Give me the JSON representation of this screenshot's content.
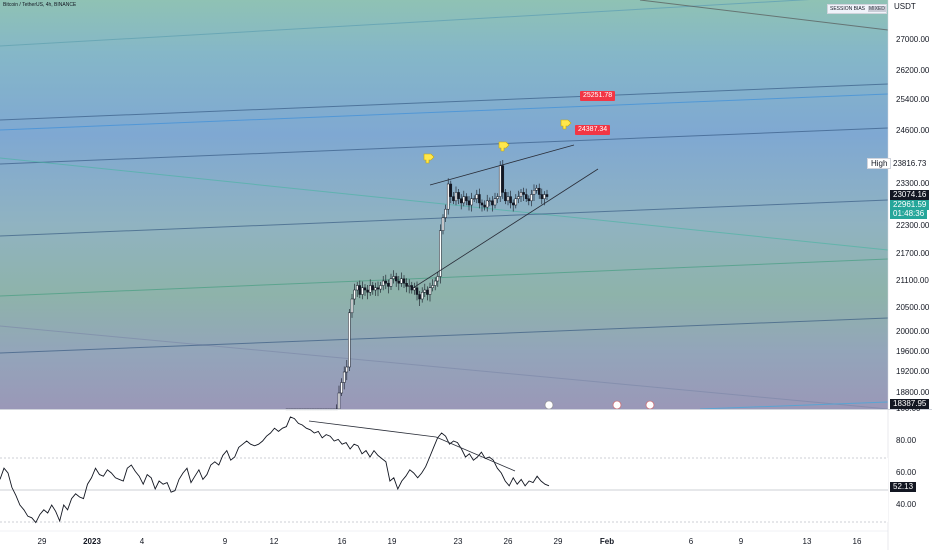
{
  "symbol": "Bitcoin / TetherUS, 4h, BINANCE",
  "indicator": {
    "name": "SESSION BIAS",
    "value": "MIXED"
  },
  "currency": "USDT",
  "colors": {
    "up": "#26a69a",
    "down": "#ef5350",
    "callout": "#f23645",
    "neutral_tag": "#131722"
  },
  "callouts": [
    {
      "text": "25251.78"
    },
    {
      "text": "24387.34"
    }
  ],
  "tags": {
    "high_label": "High",
    "high_value": "23816.73",
    "price": "23074.16",
    "last": "22961.59",
    "timer": "01:48:36",
    "low": "18387.95",
    "rsi": "52.13"
  },
  "chart_data": [
    {
      "type": "candlestick",
      "title": "Bitcoin / TetherUS, 4h, BINANCE",
      "ylabel": "USDT",
      "ylim": [
        18387,
        27800
      ],
      "yticks": [
        "27000.00",
        "26200.00",
        "25400.00",
        "24600.00",
        "23300.00",
        "22300.00",
        "21700.00",
        "21100.00",
        "20500.00",
        "20000.00",
        "19600.00",
        "19200.00",
        "18800.00"
      ],
      "xticks": [
        {
          "label": "29",
          "x": 42
        },
        {
          "label": "2023",
          "x": 92,
          "bold": true
        },
        {
          "label": "4",
          "x": 142
        },
        {
          "label": "9",
          "x": 225
        },
        {
          "label": "12",
          "x": 274
        },
        {
          "label": "16",
          "x": 342
        },
        {
          "label": "19",
          "x": 392
        },
        {
          "label": "23",
          "x": 458
        },
        {
          "label": "26",
          "x": 508
        },
        {
          "label": "29",
          "x": 558
        },
        {
          "label": "Feb",
          "x": 607,
          "bold": true
        },
        {
          "label": "6",
          "x": 691
        },
        {
          "label": "9",
          "x": 741
        },
        {
          "label": "13",
          "x": 807
        },
        {
          "label": "16",
          "x": 857
        }
      ],
      "close": [
        16560,
        16580,
        16620,
        16600,
        16650,
        16700,
        16680,
        16720,
        16780,
        16800,
        16900,
        16950,
        17000,
        17200,
        17400,
        17600,
        17800,
        17900,
        18100,
        18300,
        18800,
        19000,
        19200,
        19300,
        20400,
        20700,
        20900,
        21000,
        20800,
        20950,
        20900,
        20850,
        21000,
        20900,
        20950,
        20920,
        21000,
        21100,
        21050,
        20980,
        21150,
        21200,
        21100,
        21050,
        21150,
        21050,
        20980,
        21000,
        20900,
        20950,
        20800,
        20700,
        20850,
        20900,
        20800,
        20950,
        21000,
        21100,
        21200,
        22200,
        22500,
        22700,
        23300,
        23000,
        22900,
        23100,
        22950,
        22850,
        23000,
        22900,
        22800,
        22950,
        22950,
        23050,
        22850,
        22800,
        22750,
        22900,
        22900,
        22800,
        22950,
        23000,
        23750,
        23100,
        22900,
        23000,
        22850,
        22800,
        22950,
        23000,
        23100,
        23050,
        22950,
        22900,
        23050,
        23150,
        23200,
        23050,
        22950,
        23050,
        23000
      ],
      "highlights": {
        "high": 23816.73,
        "low": 18387.95,
        "last": 22961.59,
        "ref": 23074.16,
        "target1": 25251.78,
        "target2": 24387.34
      }
    },
    {
      "type": "line",
      "title": "RSI",
      "ylim": [
        25,
        100
      ],
      "yticks": [
        "100.00",
        "80.00",
        "60.00",
        "40.00"
      ],
      "values": [
        56,
        63,
        60,
        51,
        46,
        40,
        37,
        33,
        32,
        29,
        34,
        37,
        35,
        40,
        36,
        30,
        40,
        37,
        44,
        47,
        45,
        44,
        53,
        57,
        63,
        59,
        58,
        62,
        60,
        57,
        56,
        55,
        63,
        65,
        61,
        58,
        53,
        59,
        57,
        50,
        55,
        53,
        54,
        48,
        49,
        56,
        60,
        63,
        54,
        58,
        62,
        56,
        59,
        65,
        67,
        65,
        71,
        74,
        68,
        70,
        76,
        78,
        80,
        78,
        77,
        78,
        80,
        83,
        85,
        88,
        86,
        88,
        89,
        95,
        94,
        91,
        90,
        88,
        87,
        85,
        86,
        82,
        84,
        83,
        80,
        81,
        78,
        79,
        75,
        78,
        77,
        72,
        74,
        70,
        74,
        71,
        69,
        67,
        55,
        57,
        50,
        55,
        58,
        62,
        60,
        57,
        60,
        64,
        70,
        76,
        82,
        85,
        83,
        78,
        80,
        79,
        75,
        70,
        72,
        68,
        70,
        73,
        69,
        70,
        68,
        63,
        60,
        55,
        52,
        57,
        53,
        56,
        52,
        55,
        54,
        58,
        55,
        53,
        52
      ]
    }
  ]
}
